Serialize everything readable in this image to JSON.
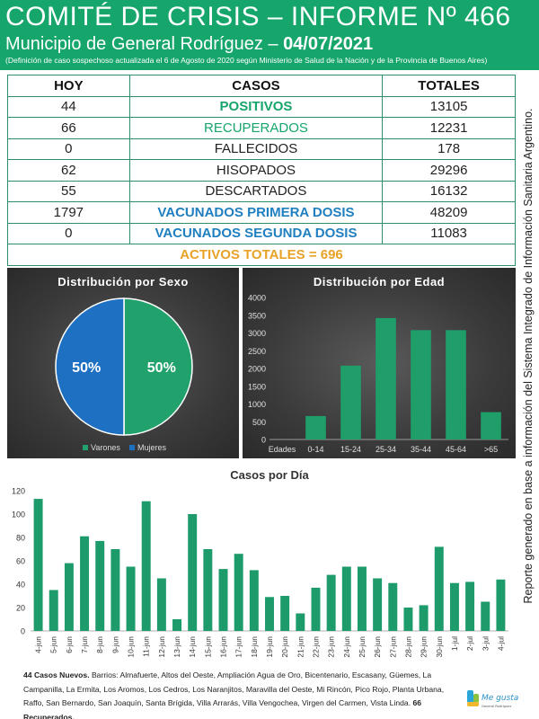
{
  "header": {
    "title": "COMITÉ DE CRISIS – INFORME Nº 466",
    "subtitle_prefix": "Municipio de General Rodríguez – ",
    "date": "04/07/2021",
    "note": "(Definición de caso sospechoso actualizada el 6 de Agosto de 2020 según Ministerio de Salud de la Nación y de la Provincia de Buenos Aires)"
  },
  "table": {
    "headers": [
      "HOY",
      "CASOS",
      "TOTALES"
    ],
    "rows": [
      {
        "hoy": "44",
        "caso": "POSITIVOS",
        "total": "13105"
      },
      {
        "hoy": "66",
        "caso": "RECUPERADOS",
        "total": "12231"
      },
      {
        "hoy": "0",
        "caso": "FALLECIDOS",
        "total": "178"
      },
      {
        "hoy": "62",
        "caso": "HISOPADOS",
        "total": "29296"
      },
      {
        "hoy": "55",
        "caso": "DESCARTADOS",
        "total": "16132"
      },
      {
        "hoy": "1797",
        "caso": "VACUNADOS PRIMERA DOSIS",
        "total": "48209"
      },
      {
        "hoy": "0",
        "caso": "VACUNADOS SEGUNDA DOSIS",
        "total": "11083"
      }
    ],
    "activos": "ACTIVOS TOTALES = 696"
  },
  "side_note": "Reporte generado en base a información del Sistema Integrado de Información Sanitaria Argentino.",
  "colors": {
    "green": "#16a66b",
    "blue": "#1f6fc0",
    "orange": "#e8a227",
    "bar_green": "#1d9b6a"
  },
  "chart_data": [
    {
      "type": "pie",
      "title": "Distribución por Sexo",
      "labels": [
        "Varones",
        "Mujeres"
      ],
      "values": [
        50,
        50
      ],
      "value_labels": [
        "50%",
        "50%"
      ],
      "colors": [
        "#21a26c",
        "#1e70c2"
      ],
      "legend": "bottom"
    },
    {
      "type": "bar",
      "title": "Distribución por Edad",
      "xlabel": "Edades",
      "categories": [
        "0-14",
        "15-24",
        "25-34",
        "35-44",
        "45-64",
        ">65"
      ],
      "values": [
        660,
        2080,
        3420,
        3080,
        3080,
        770
      ],
      "ylim": [
        0,
        4000
      ],
      "yticks": [
        "0",
        "500",
        "1000",
        "1500",
        "2000",
        "2500",
        "3000",
        "3500",
        "4000"
      ],
      "grid": false
    },
    {
      "type": "bar",
      "title": "Casos por Día",
      "categories": [
        "4-jun",
        "5-jun",
        "6-jun",
        "7-jun",
        "8-jun",
        "9-jun",
        "10-jun",
        "11-jun",
        "12-jun",
        "13-jun",
        "14-jun",
        "15-jun",
        "16-jun",
        "17-jun",
        "18-jun",
        "19-jun",
        "20-jun",
        "21-jun",
        "22-jun",
        "23-jun",
        "24-jun",
        "25-jun",
        "26-jun",
        "27-jun",
        "28-jun",
        "29-jun",
        "30-jun",
        "1-jul",
        "2-jul",
        "3-jul",
        "4-jul"
      ],
      "values": [
        113,
        35,
        58,
        81,
        77,
        70,
        55,
        111,
        45,
        10,
        100,
        70,
        53,
        66,
        52,
        29,
        30,
        15,
        37,
        48,
        55,
        55,
        45,
        41,
        20,
        22,
        72,
        41,
        42,
        25,
        44
      ],
      "ylim": [
        0,
        120
      ],
      "yticks": [
        "0",
        "20",
        "40",
        "60",
        "80",
        "100",
        "120"
      ],
      "grid": false
    }
  ],
  "footer": {
    "nuevos_label": "44 Casos Nuevos.",
    "barrios": " Barrios: Almafuerte, Altos del Oeste, Ampliación Agua de Oro, Bicentenario, Escasany, Güemes, La Campanilla, La Ermita, Los Aromos, Los Cedros, Los Naranjitos, Maravilla del Oeste, Mi Rincón, Pico Rojo, Planta Urbana, Raffo, San Bernardo, San Joaquín, Santa Brígida, Villa Arrarás, Villa Vengochea, Virgen del Carmen, Vista Linda. ",
    "recuperados_label": "66 Recuperados."
  },
  "logo": {
    "line1": "Me gusta",
    "line2": "General Rodríguez"
  }
}
